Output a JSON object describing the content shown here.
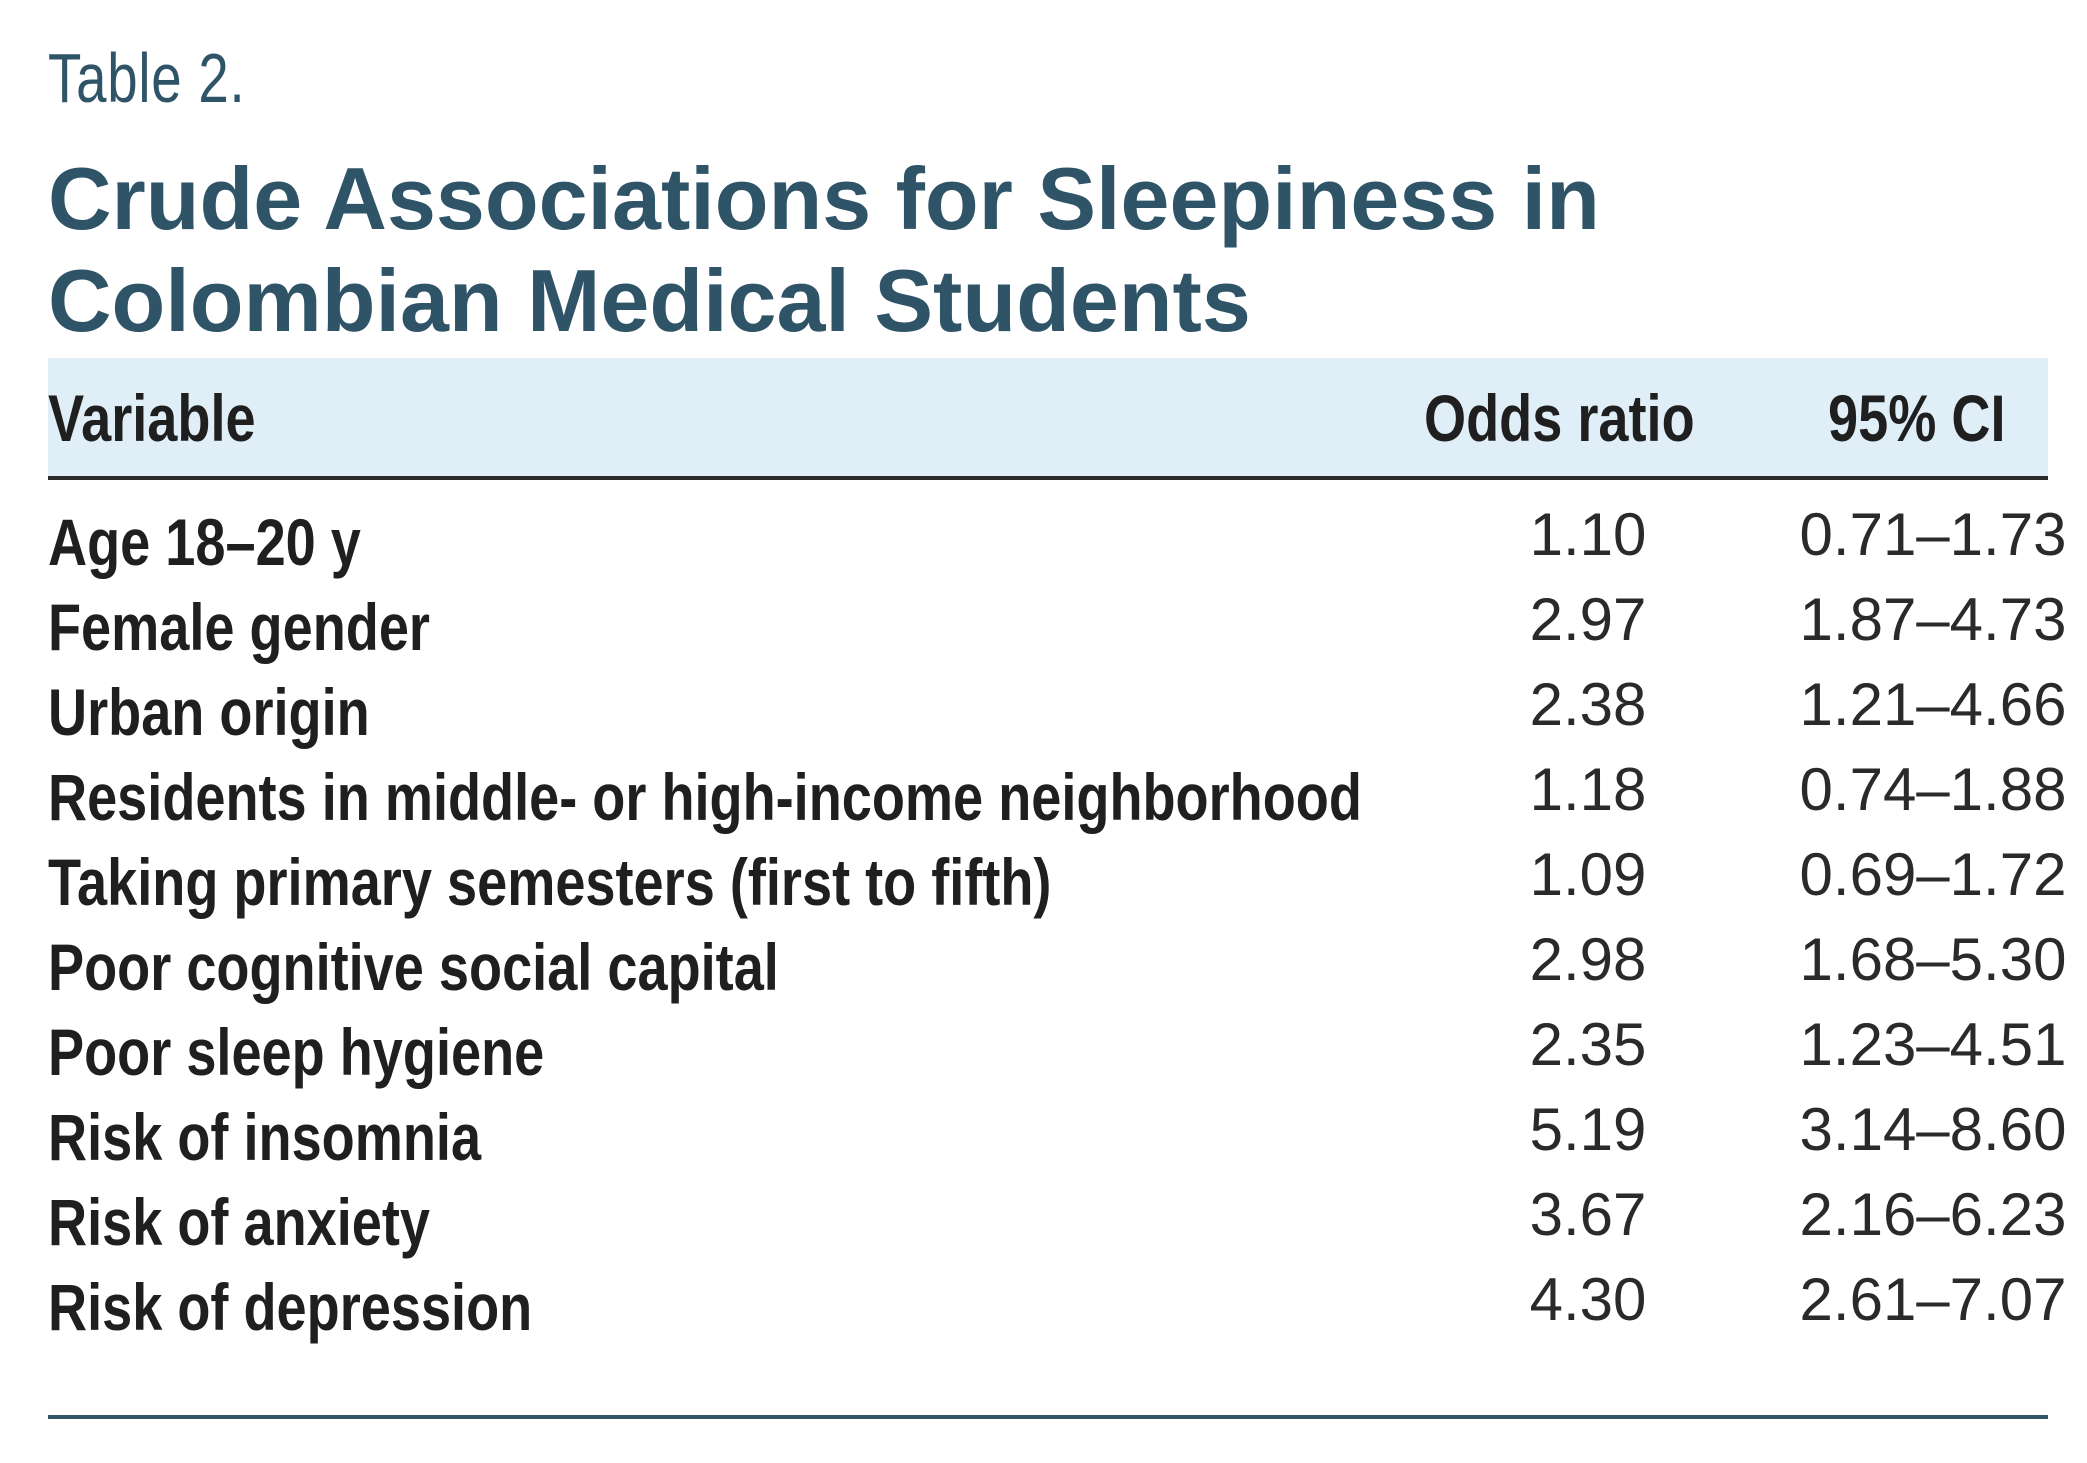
{
  "table": {
    "label": "Table 2.",
    "title": "Crude Associations for Sleepiness in Colombian Medical Students",
    "header": {
      "variable": "Variable",
      "odds_ratio": "Odds ratio",
      "ci": "95% CI"
    },
    "rows": [
      {
        "variable": "Age 18–20 y",
        "odds_ratio": "1.10",
        "ci": "0.71–1.73"
      },
      {
        "variable": "Female gender",
        "odds_ratio": "2.97",
        "ci": "1.87–4.73"
      },
      {
        "variable": "Urban origin",
        "odds_ratio": "2.38",
        "ci": "1.21–4.66"
      },
      {
        "variable": "Residents in middle- or high-income neighborhood",
        "odds_ratio": "1.18",
        "ci": "0.74–1.88"
      },
      {
        "variable": "Taking primary semesters (first to fifth)",
        "odds_ratio": "1.09",
        "ci": "0.69–1.72"
      },
      {
        "variable": "Poor cognitive social capital",
        "odds_ratio": "2.98",
        "ci": "1.68–5.30"
      },
      {
        "variable": "Poor sleep hygiene",
        "odds_ratio": "2.35",
        "ci": "1.23–4.51"
      },
      {
        "variable": "Risk of insomnia",
        "odds_ratio": "5.19",
        "ci": "3.14–8.60"
      },
      {
        "variable": "Risk of anxiety",
        "odds_ratio": "3.67",
        "ci": "2.16–6.23"
      },
      {
        "variable": "Risk of depression",
        "odds_ratio": "4.30",
        "ci": "2.61–7.07"
      }
    ]
  }
}
